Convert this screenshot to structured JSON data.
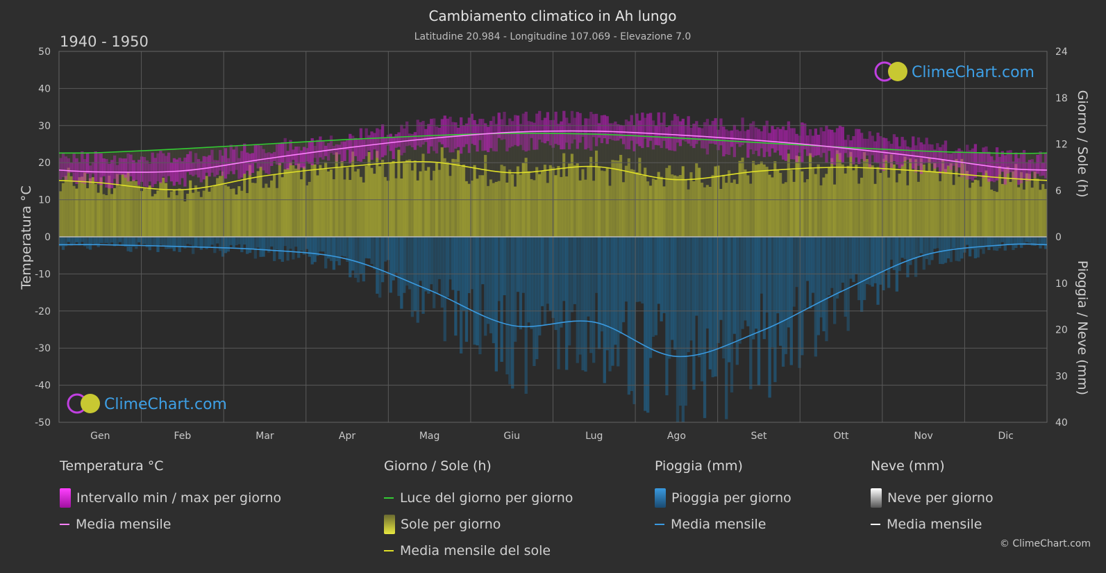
{
  "header": {
    "title": "Cambiamento climatico in Ah lungo",
    "subtitle": "Latitudine 20.984 - Longitudine 107.069 - Elevazione 7.0",
    "period": "1940 - 1950"
  },
  "branding": {
    "logo_text": "ClimeChart.com",
    "copyright": "© ClimeChart.com"
  },
  "colors": {
    "background": "#2e2e2e",
    "grid": "#555555",
    "temp_band": "#c81ec8",
    "temp_mean": "#ff80ff",
    "daylight": "#33cc33",
    "sun_band": "#b4b432",
    "sun_mean": "#e0e028",
    "rain_band": "#1e6ea0",
    "rain_mean": "#3a9ae0",
    "snow_mean": "#ffffff",
    "logo_blue": "#3ea0e6"
  },
  "chart_data": {
    "type": "line",
    "categories": [
      "Gen",
      "Feb",
      "Mar",
      "Apr",
      "Mag",
      "Giu",
      "Lug",
      "Ago",
      "Set",
      "Ott",
      "Nov",
      "Dic"
    ],
    "left_axis": {
      "label": "Temperatura °C",
      "range": [
        -50,
        50
      ],
      "ticks": [
        "50",
        "40",
        "30",
        "20",
        "10",
        "0",
        "-10",
        "-20",
        "-30",
        "-40",
        "-50"
      ]
    },
    "right_axis_top": {
      "label": "Giorno / Sole (h)",
      "range": [
        0,
        24
      ],
      "ticks": [
        "24",
        "18",
        "12",
        "6",
        "0"
      ]
    },
    "right_axis_bottom": {
      "label": "Pioggia / Neve (mm)",
      "range": [
        0,
        40
      ],
      "ticks": [
        "0",
        "10",
        "20",
        "30",
        "40"
      ]
    },
    "series": [
      {
        "name": "Media mensile",
        "group": "Temperatura °C",
        "unit": "°C",
        "values": [
          17.5,
          17.8,
          21,
          24,
          26.5,
          28.2,
          28.5,
          27.5,
          26,
          24,
          21.5,
          18.5
        ]
      },
      {
        "name": "Luce del giorno per giorno",
        "group": "Giorno / Sole (h)",
        "unit": "h",
        "values": [
          10.9,
          11.4,
          12,
          12.6,
          13.1,
          13.4,
          13.3,
          12.8,
          12.2,
          11.6,
          11.1,
          10.8
        ]
      },
      {
        "name": "Media mensile del sole",
        "group": "Giorno / Sole (h)",
        "unit": "h",
        "values": [
          7,
          6.1,
          7.9,
          9.1,
          9.7,
          8.3,
          9.1,
          7.4,
          8.5,
          9,
          8.5,
          7.6
        ]
      },
      {
        "name": "Media mensile",
        "group": "Pioggia (mm)",
        "unit": "mm",
        "values": [
          1.7,
          2.1,
          2.8,
          4.8,
          11.5,
          19.1,
          18.4,
          25.8,
          20.5,
          11.8,
          4,
          1.7
        ]
      }
    ],
    "temp_band": {
      "max": [
        21,
        21.5,
        24,
        27,
        30.5,
        32,
        32,
        31.5,
        30,
        28,
        25,
        22
      ],
      "min": [
        15,
        15.5,
        18.5,
        21.5,
        24,
        25,
        25,
        24.5,
        23,
        21,
        18.5,
        16
      ]
    },
    "legend": {
      "groups": [
        {
          "title": "Temperatura °C",
          "items": [
            "Intervallo min / max per giorno",
            "Media mensile"
          ]
        },
        {
          "title": "Giorno / Sole (h)",
          "items": [
            "Luce del giorno per giorno",
            "Sole per giorno",
            "Media mensile del sole"
          ]
        },
        {
          "title": "Pioggia (mm)",
          "items": [
            "Pioggia per giorno",
            "Media mensile"
          ]
        },
        {
          "title": "Neve (mm)",
          "items": [
            "Neve per giorno",
            "Media mensile"
          ]
        }
      ]
    }
  }
}
